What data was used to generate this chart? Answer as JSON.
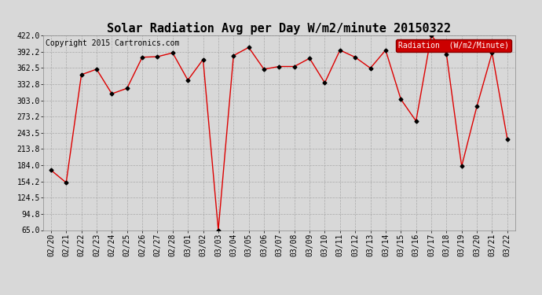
{
  "title": "Solar Radiation Avg per Day W/m2/minute 20150322",
  "copyright": "Copyright 2015 Cartronics.com",
  "legend_label": "Radiation  (W/m2/Minute)",
  "dates": [
    "02/20",
    "02/21",
    "02/22",
    "02/23",
    "02/24",
    "02/25",
    "02/26",
    "02/27",
    "02/28",
    "03/01",
    "03/02",
    "03/03",
    "03/04",
    "03/05",
    "03/06",
    "03/07",
    "03/08",
    "03/09",
    "03/10",
    "03/11",
    "03/12",
    "03/13",
    "03/14",
    "03/15",
    "03/16",
    "03/17",
    "03/18",
    "03/19",
    "03/20",
    "03/21",
    "03/22"
  ],
  "values": [
    175,
    152,
    350,
    360,
    315,
    325,
    382,
    383,
    390,
    340,
    378,
    65,
    385,
    400,
    360,
    365,
    365,
    380,
    335,
    395,
    382,
    362,
    395,
    305,
    265,
    422,
    388,
    182,
    292,
    390,
    232
  ],
  "line_color": "#dd0000",
  "marker_color": "#000000",
  "background_color": "#d8d8d8",
  "plot_bg_color": "#d8d8d8",
  "grid_color": "#aaaaaa",
  "legend_bg": "#cc0000",
  "legend_text_color": "#ffffff",
  "ylim": [
    65.0,
    422.0
  ],
  "yticks": [
    65.0,
    94.8,
    124.5,
    154.2,
    184.0,
    213.8,
    243.5,
    273.2,
    303.0,
    332.8,
    362.5,
    392.2,
    422.0
  ],
  "title_fontsize": 11,
  "copyright_fontsize": 7,
  "tick_fontsize": 7,
  "legend_fontsize": 7
}
